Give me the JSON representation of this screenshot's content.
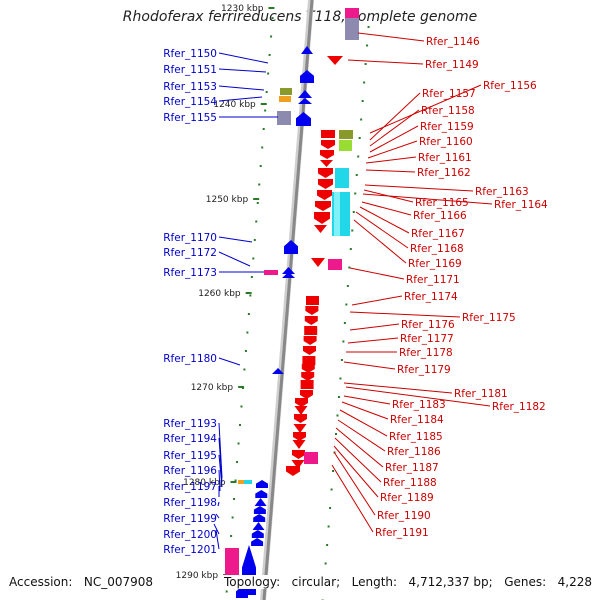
{
  "header": {
    "title": "Rhodoferax ferrireducens T118, complete genome"
  },
  "footer": {
    "accession_label": "Accession:",
    "accession_value": "NC_007908",
    "topology_label": "Topology:",
    "topology_value": "circular;",
    "length_label": "Length:",
    "length_value": "4,712,337 bp;",
    "genes_label": "Genes:",
    "genes_value": "4,228"
  },
  "colors": {
    "backbone": "#888888",
    "left_label": "#0000cc",
    "right_label": "#cc0000",
    "tick": "#2a7a2a"
  },
  "scale": {
    "unit": "kbp",
    "ticks": [
      "1230 kbp",
      "1240 kbp",
      "1250 kbp",
      "1260 kbp",
      "1270 kbp",
      "1280 kbp",
      "1290 kbp"
    ]
  },
  "left_labels": [
    "Rfer_1150",
    "Rfer_1151",
    "Rfer_1153",
    "Rfer_1154",
    "Rfer_1155",
    "Rfer_1170",
    "Rfer_1172",
    "Rfer_1173",
    "Rfer_1180",
    "Rfer_1193",
    "Rfer_1194",
    "Rfer_1195",
    "Rfer_1196",
    "Rfer_1197",
    "Rfer_1198",
    "Rfer_1199",
    "Rfer_1200",
    "Rfer_1201"
  ],
  "right_labels": [
    "Rfer_1146",
    "Rfer_1149",
    "Rfer_1156",
    "Rfer_1157",
    "Rfer_1158",
    "Rfer_1159",
    "Rfer_1160",
    "Rfer_1161",
    "Rfer_1162",
    "Rfer_1163",
    "Rfer_1165",
    "Rfer_1164",
    "Rfer_1166",
    "Rfer_1167",
    "Rfer_1168",
    "Rfer_1169",
    "Rfer_1171",
    "Rfer_1174",
    "Rfer_1175",
    "Rfer_1176",
    "Rfer_1177",
    "Rfer_1178",
    "Rfer_1179",
    "Rfer_1181",
    "Rfer_1182",
    "Rfer_1183",
    "Rfer_1184",
    "Rfer_1185",
    "Rfer_1186",
    "Rfer_1187",
    "Rfer_1188",
    "Rfer_1189",
    "Rfer_1190",
    "Rfer_1191"
  ]
}
